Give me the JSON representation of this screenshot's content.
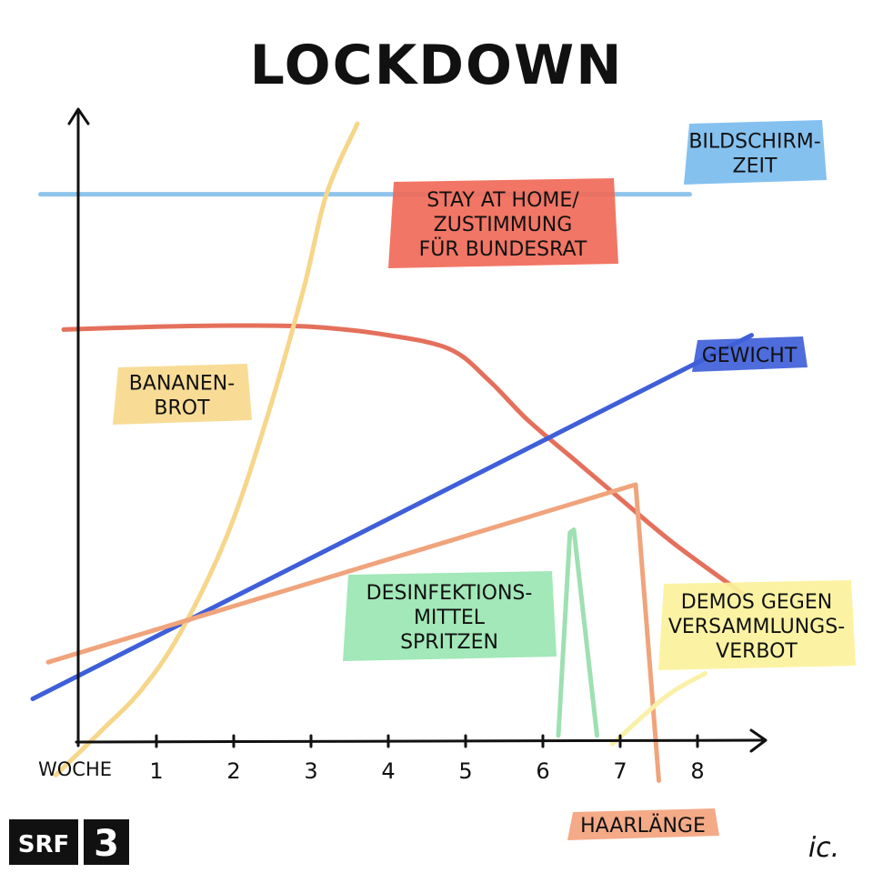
{
  "chart_data": {
    "type": "line",
    "title": "LOCKDOWN",
    "xlabel": "WOCHE",
    "x_ticks": [
      "1",
      "2",
      "3",
      "4",
      "5",
      "6",
      "7",
      "8"
    ],
    "xlim": [
      0,
      8.8
    ],
    "ylim": [
      0,
      10
    ],
    "grid": false,
    "series": [
      {
        "name": "BILDSCHIRM- ZEIT",
        "label_lines": [
          "BILDSCHIRM-",
          "ZEIT"
        ],
        "color": "#8fc4ec",
        "label_color": "#7bbcee",
        "points": [
          [
            -0.5,
            9.7
          ],
          [
            7.9,
            9.7
          ]
        ]
      },
      {
        "name": "STAY AT HOME/ ZUSTIMMUNG FÜR BUNDESRAT",
        "label_lines": [
          "STAY AT HOME/",
          "ZUSTIMMUNG",
          "FÜR BUNDESRAT"
        ],
        "color": "#e4705c",
        "label_color": "#f06a58",
        "points": [
          [
            -0.2,
            7.3
          ],
          [
            1,
            7.35
          ],
          [
            2,
            7.37
          ],
          [
            3,
            7.35
          ],
          [
            4,
            7.2
          ],
          [
            4.8,
            6.95
          ],
          [
            5.3,
            6.4
          ],
          [
            5.8,
            5.7
          ],
          [
            6.4,
            5.0
          ],
          [
            7,
            4.3
          ],
          [
            7.7,
            3.5
          ],
          [
            8.6,
            2.6
          ]
        ]
      },
      {
        "name": "GEWICHT",
        "label_lines": [
          "GEWICHT"
        ],
        "color": "#3e5fd8",
        "label_color": "#3f5fd8",
        "points": [
          [
            -0.6,
            0.75
          ],
          [
            8.7,
            7.2
          ]
        ]
      },
      {
        "name": "BANANEN- BROT",
        "label_lines": [
          "BANANEN-",
          "BROT"
        ],
        "color": "#f6d68a",
        "label_color": "#f7d98d",
        "points": [
          [
            -0.3,
            -0.6
          ],
          [
            0.3,
            0.2
          ],
          [
            0.8,
            0.9
          ],
          [
            1.3,
            1.9
          ],
          [
            1.9,
            3.6
          ],
          [
            2.4,
            5.6
          ],
          [
            2.9,
            8.0
          ],
          [
            3.2,
            9.7
          ],
          [
            3.6,
            10.95
          ]
        ]
      },
      {
        "name": "HAARLÄNGE",
        "label_lines": [
          "HAARLÄNGE"
        ],
        "color": "#f0a47c",
        "label_color": "#f3a37d",
        "points": [
          [
            -0.4,
            1.4
          ],
          [
            7.2,
            4.55
          ],
          [
            7.5,
            -0.7
          ]
        ]
      },
      {
        "name": "DESINFEKTIONS- MITTEL SPRITZEN",
        "label_lines": [
          "DESINFEKTIONS-",
          "MITTEL",
          "SPRITZEN"
        ],
        "color": "#9ee0b2",
        "label_color": "#9ae6b2",
        "points": [
          [
            6.2,
            0.1
          ],
          [
            6.35,
            3.7
          ],
          [
            6.4,
            3.75
          ],
          [
            6.7,
            0.1
          ]
        ]
      },
      {
        "name": "DEMOS GEGEN VERSAMMLUNGS- VERBOT",
        "label_lines": [
          "DEMOS GEGEN",
          "VERSAMMLUNGS-",
          "VERBOT"
        ],
        "color": "#faf0a8",
        "label_color": "#fbf29b",
        "points": [
          [
            6.9,
            -0.05
          ],
          [
            7.6,
            0.8
          ],
          [
            8.1,
            1.2
          ]
        ]
      }
    ],
    "branding": {
      "logo_left": "SRF",
      "logo_right": "3",
      "signature": "ic."
    }
  }
}
